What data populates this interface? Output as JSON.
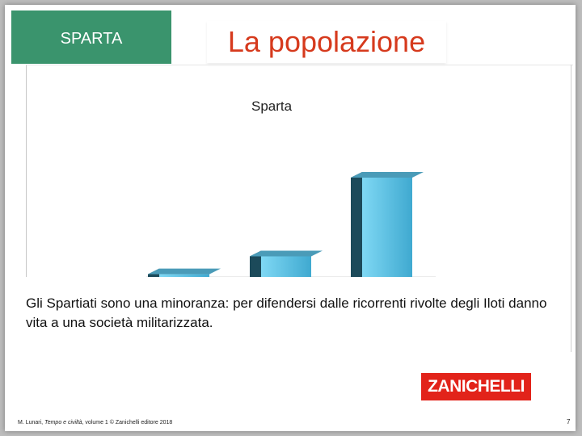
{
  "slide": {
    "section_label": "SPARTA",
    "title": "La popolazione",
    "caption": "Gli Spartiati sono una minoranza: per difendersi dalle ricorrenti rivolte degli Iloti danno vita a una società militarizzata.",
    "logo_text": "ZANICHELLI",
    "footer": {
      "prefix": "M. Lunari, ",
      "book": "Tempo e civiltà",
      "suffix": ", volume 1 © Zanichelli editore 2018"
    },
    "page_number": "7"
  },
  "colors": {
    "section_bg": "#3a946d",
    "title_text": "#d63a1d",
    "bar_top": "#4a9bb8",
    "bar_front": "#3fa9d0",
    "bar_light": "#7fd8f4",
    "bar_side": "#1c4a5a",
    "logo_bg": "#e2231a"
  },
  "chart_data": {
    "type": "bar",
    "title": "Sparta",
    "categories": [
      "",
      "",
      ""
    ],
    "values": [
      8,
      25,
      100
    ],
    "ylim": [
      0,
      110
    ],
    "grid": false,
    "legend": "none"
  }
}
